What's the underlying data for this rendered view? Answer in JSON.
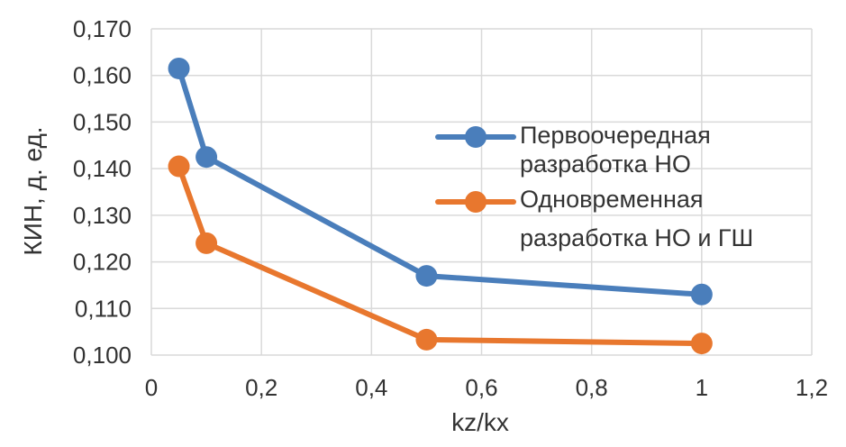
{
  "chart_data": {
    "type": "line",
    "xlabel": "kz/kx",
    "ylabel": "КИН, д. ед.",
    "xlim": [
      0,
      1.2
    ],
    "ylim": [
      0.1,
      0.17
    ],
    "x_ticks": [
      "0",
      "0,2",
      "0,4",
      "0,6",
      "0,8",
      "1",
      "1,2"
    ],
    "y_ticks": [
      "0,100",
      "0,110",
      "0,120",
      "0,130",
      "0,140",
      "0,150",
      "0,160",
      "0,170"
    ],
    "grid": true,
    "legend_position": "right",
    "series": [
      {
        "name_lines": [
          "Первоочередная",
          "разработка НО"
        ],
        "color": "#4a7ebb",
        "x": [
          0.05,
          0.1,
          0.5,
          1.0
        ],
        "y": [
          0.1615,
          0.1425,
          0.117,
          0.113
        ]
      },
      {
        "name_lines": [
          "Одновременная",
          "разработка НО и ГШ"
        ],
        "color": "#e8772e",
        "x": [
          0.05,
          0.1,
          0.5,
          1.0
        ],
        "y": [
          0.1405,
          0.124,
          0.1033,
          0.1025
        ]
      }
    ]
  }
}
